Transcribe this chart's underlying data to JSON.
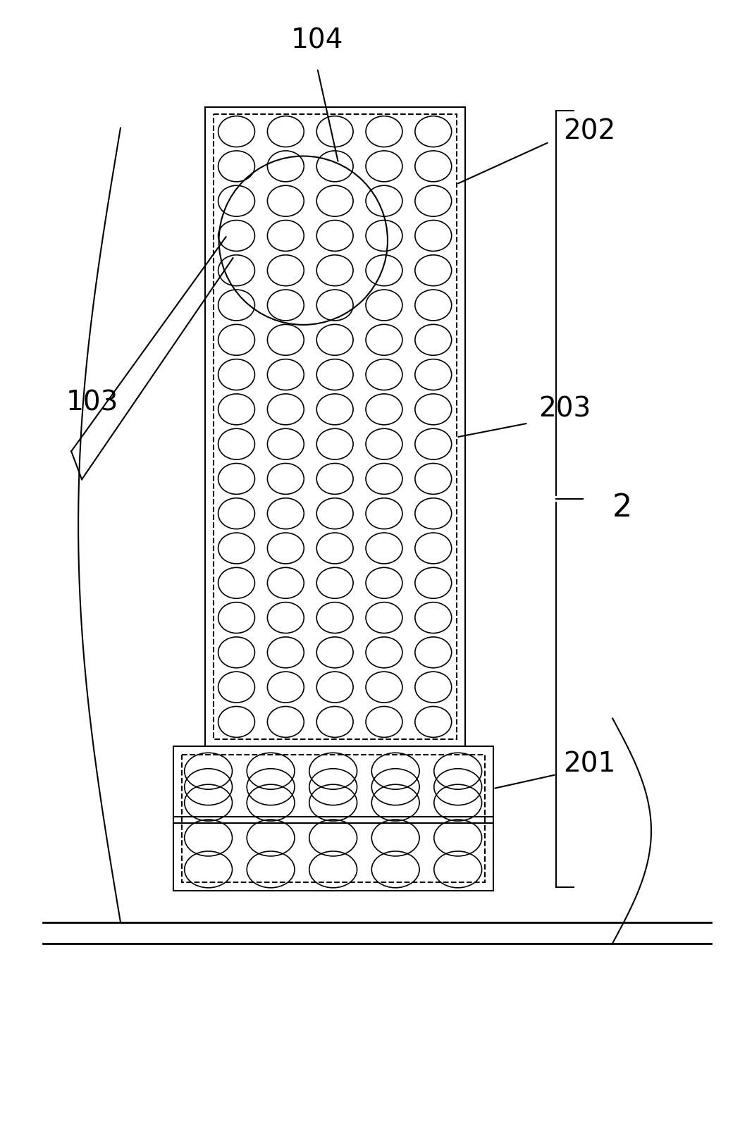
{
  "bg_color": "#ffffff",
  "line_color": "#000000",
  "fig_width": 10.67,
  "fig_height": 16.05,
  "lw": 1.5,
  "lw_thin": 1.2
}
